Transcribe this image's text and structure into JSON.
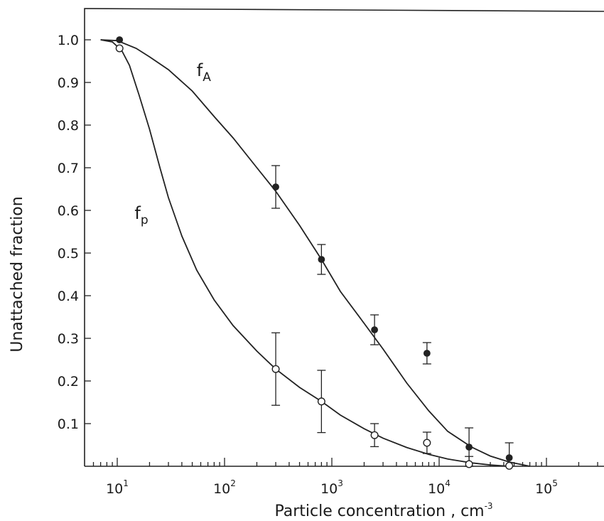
{
  "chart_data": {
    "type": "line",
    "x_scale": "log",
    "xlabel": "Particle concentration , cm",
    "xlabel_sup": "-3",
    "ylabel": "Unattached fraction",
    "xlim": [
      5.5,
      400000
    ],
    "ylim": [
      0,
      1.05
    ],
    "x_ticks": [
      {
        "base": "10",
        "exp": "1",
        "value": 10
      },
      {
        "base": "10",
        "exp": "2",
        "value": 100
      },
      {
        "base": "10",
        "exp": "3",
        "value": 1000
      },
      {
        "base": "10",
        "exp": "4",
        "value": 10000
      },
      {
        "base": "10",
        "exp": "5",
        "value": 100000
      }
    ],
    "y_ticks": [
      {
        "label": "0.1",
        "value": 0.1
      },
      {
        "label": "0.2",
        "value": 0.2
      },
      {
        "label": "0.3",
        "value": 0.3
      },
      {
        "label": "0.4",
        "value": 0.4
      },
      {
        "label": "0.5",
        "value": 0.5
      },
      {
        "label": "0.6",
        "value": 0.6
      },
      {
        "label": "0.7",
        "value": 0.7
      },
      {
        "label": "0.8",
        "value": 0.8
      },
      {
        "label": "0.9",
        "value": 0.9
      },
      {
        "label": "1.0",
        "value": 1.0
      }
    ],
    "grid": false,
    "legend": "none",
    "series": [
      {
        "name": "f",
        "subscript": "A",
        "marker": "filled-circle",
        "label_at": {
          "x": 55,
          "y": 0.915
        },
        "points": [
          {
            "x": 10.5,
            "y": 1.0,
            "err": 0
          },
          {
            "x": 300,
            "y": 0.655,
            "err": 0.05
          },
          {
            "x": 800,
            "y": 0.485,
            "err": 0.035
          },
          {
            "x": 2500,
            "y": 0.32,
            "err": 0.035
          },
          {
            "x": 7700,
            "y": 0.265,
            "err": 0.025
          },
          {
            "x": 19000,
            "y": 0.045,
            "err": 0.045
          },
          {
            "x": 45000,
            "y": 0.02,
            "err": 0.035
          }
        ],
        "curve": [
          {
            "x": 7,
            "y": 1.0
          },
          {
            "x": 10,
            "y": 0.998
          },
          {
            "x": 15,
            "y": 0.98
          },
          {
            "x": 20,
            "y": 0.96
          },
          {
            "x": 30,
            "y": 0.93
          },
          {
            "x": 50,
            "y": 0.88
          },
          {
            "x": 80,
            "y": 0.82
          },
          {
            "x": 120,
            "y": 0.77
          },
          {
            "x": 200,
            "y": 0.7
          },
          {
            "x": 300,
            "y": 0.645
          },
          {
            "x": 500,
            "y": 0.565
          },
          {
            "x": 800,
            "y": 0.485
          },
          {
            "x": 1200,
            "y": 0.41
          },
          {
            "x": 2000,
            "y": 0.335
          },
          {
            "x": 3000,
            "y": 0.275
          },
          {
            "x": 5000,
            "y": 0.195
          },
          {
            "x": 8000,
            "y": 0.13
          },
          {
            "x": 12000,
            "y": 0.082
          },
          {
            "x": 20000,
            "y": 0.045
          },
          {
            "x": 30000,
            "y": 0.024
          },
          {
            "x": 45000,
            "y": 0.01
          },
          {
            "x": 70000,
            "y": 0.0
          }
        ]
      },
      {
        "name": "f",
        "subscript": "p",
        "marker": "open-circle",
        "label_at": {
          "x": 14.5,
          "y": 0.58
        },
        "points": [
          {
            "x": 10.5,
            "y": 0.98,
            "err": 0
          },
          {
            "x": 300,
            "y": 0.228,
            "err": 0.085
          },
          {
            "x": 800,
            "y": 0.152,
            "err": 0.073
          },
          {
            "x": 2500,
            "y": 0.073,
            "err": 0.027
          },
          {
            "x": 7700,
            "y": 0.055,
            "err": 0.025
          },
          {
            "x": 19000,
            "y": 0.005,
            "err": 0.018
          },
          {
            "x": 45000,
            "y": 0.001,
            "err": 0
          }
        ],
        "curve": [
          {
            "x": 7,
            "y": 1.0
          },
          {
            "x": 9,
            "y": 0.995
          },
          {
            "x": 11,
            "y": 0.975
          },
          {
            "x": 13,
            "y": 0.94
          },
          {
            "x": 16,
            "y": 0.87
          },
          {
            "x": 20,
            "y": 0.79
          },
          {
            "x": 25,
            "y": 0.7
          },
          {
            "x": 30,
            "y": 0.63
          },
          {
            "x": 40,
            "y": 0.54
          },
          {
            "x": 55,
            "y": 0.46
          },
          {
            "x": 80,
            "y": 0.39
          },
          {
            "x": 120,
            "y": 0.33
          },
          {
            "x": 200,
            "y": 0.27
          },
          {
            "x": 300,
            "y": 0.228
          },
          {
            "x": 500,
            "y": 0.185
          },
          {
            "x": 800,
            "y": 0.152
          },
          {
            "x": 1200,
            "y": 0.12
          },
          {
            "x": 2000,
            "y": 0.088
          },
          {
            "x": 3000,
            "y": 0.066
          },
          {
            "x": 5000,
            "y": 0.044
          },
          {
            "x": 8000,
            "y": 0.028
          },
          {
            "x": 12000,
            "y": 0.017
          },
          {
            "x": 20000,
            "y": 0.008
          },
          {
            "x": 30000,
            "y": 0.003
          },
          {
            "x": 45000,
            "y": 0.0
          }
        ]
      }
    ]
  }
}
